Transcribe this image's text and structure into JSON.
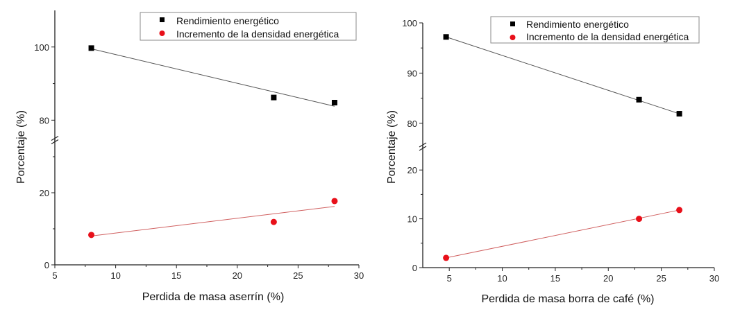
{
  "chart_data": [
    {
      "type": "scatter",
      "xlabel": "Perdida de masa aserrín (%)",
      "ylabel": "Porcentaje (%)",
      "xlim": [
        5,
        30
      ],
      "xticks": [
        5,
        10,
        15,
        20,
        25,
        30
      ],
      "y_break": true,
      "ylim_lower": [
        0,
        35
      ],
      "ylim_upper": [
        74,
        110
      ],
      "yticks_lower": [
        0,
        20
      ],
      "yticks_upper": [
        80,
        100
      ],
      "legend_position": "top-right",
      "series": [
        {
          "name": "Rendimiento energético",
          "marker": "square",
          "color": "#000000",
          "x": [
            8,
            23,
            28
          ],
          "y": [
            99.7,
            86.2,
            84.8
          ],
          "fit": [
            [
              8,
              99.5
            ],
            [
              28,
              83.8
            ]
          ],
          "fit_color": "#555555"
        },
        {
          "name": "Incremento de la densidad energética",
          "marker": "circle",
          "color": "#e8101a",
          "x": [
            8,
            23,
            28
          ],
          "y": [
            8.3,
            11.9,
            17.7
          ],
          "fit": [
            [
              8,
              8.0
            ],
            [
              28,
              16.2
            ]
          ],
          "fit_color": "#d06060"
        }
      ]
    },
    {
      "type": "scatter",
      "xlabel": "Perdida de masa borra de café (%)",
      "ylabel": "Porcentaje (%)",
      "xlim": [
        2.5,
        30
      ],
      "xticks": [
        5,
        10,
        15,
        20,
        25,
        30
      ],
      "y_break": true,
      "ylim_lower": [
        0,
        25
      ],
      "ylim_upper": [
        75,
        100
      ],
      "yticks_lower": [
        0,
        10,
        20
      ],
      "yticks_upper": [
        80,
        90,
        100
      ],
      "legend_position": "top-right",
      "series": [
        {
          "name": "Rendimiento energético",
          "marker": "square",
          "color": "#000000",
          "x": [
            4.7,
            22.9,
            26.7
          ],
          "y": [
            97.2,
            84.7,
            81.9
          ],
          "fit": [
            [
              4.7,
              97.2
            ],
            [
              26.7,
              81.9
            ]
          ],
          "fit_color": "#555555"
        },
        {
          "name": "Incremento de la densidad energética",
          "marker": "circle",
          "color": "#e8101a",
          "x": [
            4.7,
            22.9,
            26.7
          ],
          "y": [
            2.0,
            10.0,
            11.8
          ],
          "fit": [
            [
              4.7,
              2.0
            ],
            [
              26.7,
              11.8
            ]
          ],
          "fit_color": "#d06060"
        }
      ]
    }
  ]
}
